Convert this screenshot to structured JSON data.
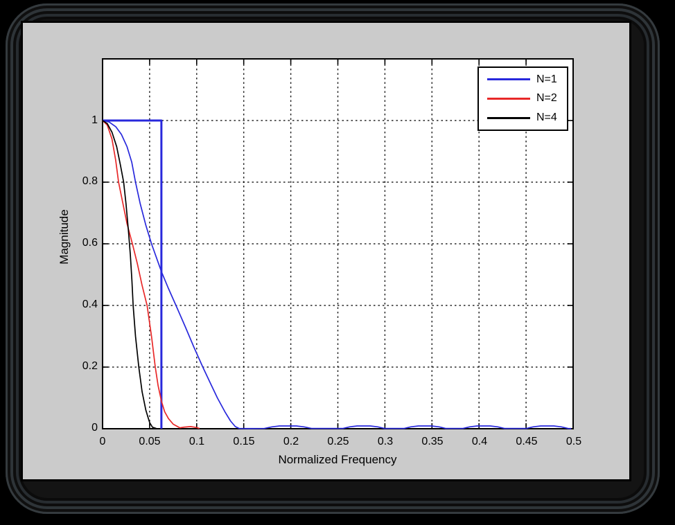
{
  "window": {
    "background": "#000000",
    "frame_ridge_color": "#333a3e",
    "panel_color": "#cbcbcb",
    "plot_background": "#ffffff"
  },
  "chart_data": {
    "type": "line",
    "title": "",
    "xlabel": "Normalized Frequency",
    "ylabel": "Magnitude",
    "xlim": [
      0,
      0.5
    ],
    "ylim": [
      0,
      1.2
    ],
    "grid": true,
    "grid_style": "dashed",
    "xticks": [
      0,
      0.05,
      0.1,
      0.15,
      0.2,
      0.25,
      0.3,
      0.35,
      0.4,
      0.45,
      0.5
    ],
    "xtick_labels": [
      "0",
      "0.05",
      "0.1",
      "0.15",
      "0.2",
      "0.25",
      "0.3",
      "0.35",
      "0.4",
      "0.45",
      "0.5"
    ],
    "yticks": [
      0,
      0.2,
      0.4,
      0.6,
      0.8,
      1
    ],
    "ytick_labels": [
      "0",
      "0.2",
      "0.4",
      "0.6",
      "0.8",
      "1"
    ],
    "legend": {
      "position": "top-right",
      "entries": [
        {
          "label": "N=1",
          "color": "#2828DC"
        },
        {
          "label": "N=2",
          "color": "#E82828"
        },
        {
          "label": "N=4",
          "color": "#000000"
        }
      ]
    },
    "series": [
      {
        "name": "ideal-brickwall-cutoff (unlabeled, cutoff 0.0625)",
        "color": "#2828DC",
        "line_width": 3,
        "points": [
          [
            0,
            1
          ],
          [
            0.0625,
            1
          ],
          [
            0.0625,
            0
          ]
        ]
      },
      {
        "name": "N=1",
        "color": "#2828DC",
        "line_width": 1.7,
        "points": [
          [
            0,
            1
          ],
          [
            0.007,
            0.995
          ],
          [
            0.014,
            0.98
          ],
          [
            0.02,
            0.955
          ],
          [
            0.026,
            0.915
          ],
          [
            0.031,
            0.865
          ],
          [
            0.035,
            0.8
          ],
          [
            0.04,
            0.73
          ],
          [
            0.046,
            0.66
          ],
          [
            0.052,
            0.6
          ],
          [
            0.0625,
            0.51
          ],
          [
            0.07,
            0.455
          ],
          [
            0.078,
            0.4
          ],
          [
            0.088,
            0.33
          ],
          [
            0.097,
            0.265
          ],
          [
            0.1065,
            0.2
          ],
          [
            0.115,
            0.145
          ],
          [
            0.122,
            0.1
          ],
          [
            0.13,
            0.055
          ],
          [
            0.136,
            0.025
          ],
          [
            0.141,
            0.007
          ],
          [
            0.145,
            0.001
          ],
          [
            0.155,
            0.0005
          ],
          [
            0.172,
            0.001
          ],
          [
            0.18,
            0.006
          ],
          [
            0.188,
            0.009
          ],
          [
            0.206,
            0.009
          ],
          [
            0.214,
            0.006
          ],
          [
            0.222,
            0.001
          ],
          [
            0.2555,
            0.001
          ],
          [
            0.2625,
            0.006
          ],
          [
            0.2705,
            0.009
          ],
          [
            0.2845,
            0.009
          ],
          [
            0.2925,
            0.006
          ],
          [
            0.2995,
            0.001
          ],
          [
            0.3205,
            0.001
          ],
          [
            0.3275,
            0.006
          ],
          [
            0.3355,
            0.009
          ],
          [
            0.3495,
            0.009
          ],
          [
            0.3575,
            0.006
          ],
          [
            0.3645,
            0.001
          ],
          [
            0.383,
            0.001
          ],
          [
            0.39,
            0.006
          ],
          [
            0.398,
            0.009
          ],
          [
            0.412,
            0.009
          ],
          [
            0.42,
            0.006
          ],
          [
            0.427,
            0.001
          ],
          [
            0.4505,
            0.001
          ],
          [
            0.4575,
            0.006
          ],
          [
            0.4655,
            0.009
          ],
          [
            0.4795,
            0.009
          ],
          [
            0.4875,
            0.006
          ],
          [
            0.4945,
            0.001
          ],
          [
            0.498,
            0.0005
          ]
        ]
      },
      {
        "name": "N=2",
        "color": "#E82828",
        "line_width": 1.7,
        "points": [
          [
            0,
            1
          ],
          [
            0.005,
            0.985
          ],
          [
            0.01,
            0.94
          ],
          [
            0.014,
            0.87
          ],
          [
            0.017,
            0.8
          ],
          [
            0.021,
            0.74
          ],
          [
            0.026,
            0.665
          ],
          [
            0.0317,
            0.6
          ],
          [
            0.037,
            0.535
          ],
          [
            0.042,
            0.465
          ],
          [
            0.0473,
            0.4
          ],
          [
            0.052,
            0.3
          ],
          [
            0.056,
            0.2
          ],
          [
            0.059,
            0.14
          ],
          [
            0.0625,
            0.09
          ],
          [
            0.066,
            0.055
          ],
          [
            0.07,
            0.033
          ],
          [
            0.075,
            0.015
          ],
          [
            0.082,
            0.003
          ],
          [
            0.0865,
            0.005
          ],
          [
            0.0935,
            0.007
          ],
          [
            0.0995,
            0.004
          ],
          [
            0.103,
            0.001
          ]
        ]
      },
      {
        "name": "N=4",
        "color": "#000000",
        "line_width": 1.7,
        "points": [
          [
            0,
            1
          ],
          [
            0.005,
            0.99
          ],
          [
            0.01,
            0.962
          ],
          [
            0.015,
            0.915
          ],
          [
            0.019,
            0.855
          ],
          [
            0.0224,
            0.8
          ],
          [
            0.0249,
            0.73
          ],
          [
            0.0274,
            0.645
          ],
          [
            0.0295,
            0.565
          ],
          [
            0.0312,
            0.48
          ],
          [
            0.0325,
            0.4
          ],
          [
            0.035,
            0.3
          ],
          [
            0.0385,
            0.2
          ],
          [
            0.042,
            0.12
          ],
          [
            0.046,
            0.06
          ],
          [
            0.05,
            0.02
          ],
          [
            0.053,
            0.005
          ],
          [
            0.057,
            0.001
          ]
        ]
      }
    ]
  }
}
